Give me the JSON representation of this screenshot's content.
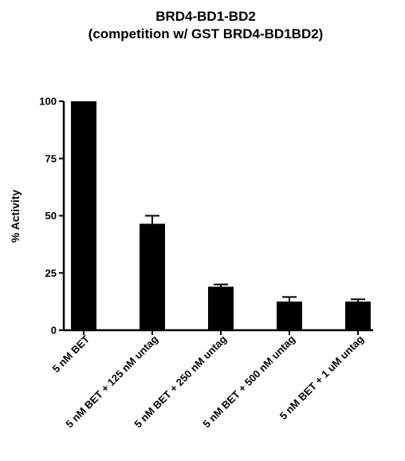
{
  "chart_data": {
    "type": "bar",
    "title": "BRD4-BD1-BD2",
    "subtitle": "(competition w/ GST BRD4-BD1BD2)",
    "xlabel": "",
    "ylabel": "% Activity",
    "ylim": [
      0,
      100
    ],
    "yticks": [
      0,
      25,
      50,
      75,
      100
    ],
    "categories": [
      "5 nM BET",
      "5 nM BET + 125 nM untag",
      "5 nM BET + 250 nM untag",
      "5 nM BET + 500 nM untag",
      "5 nM BET + 1 uM untag"
    ],
    "values": [
      100,
      46.5,
      19,
      12.5,
      12.5
    ],
    "errors": [
      0,
      3.5,
      1,
      2,
      1
    ],
    "bar_color": "#000000",
    "grid": false,
    "legend": "none"
  }
}
